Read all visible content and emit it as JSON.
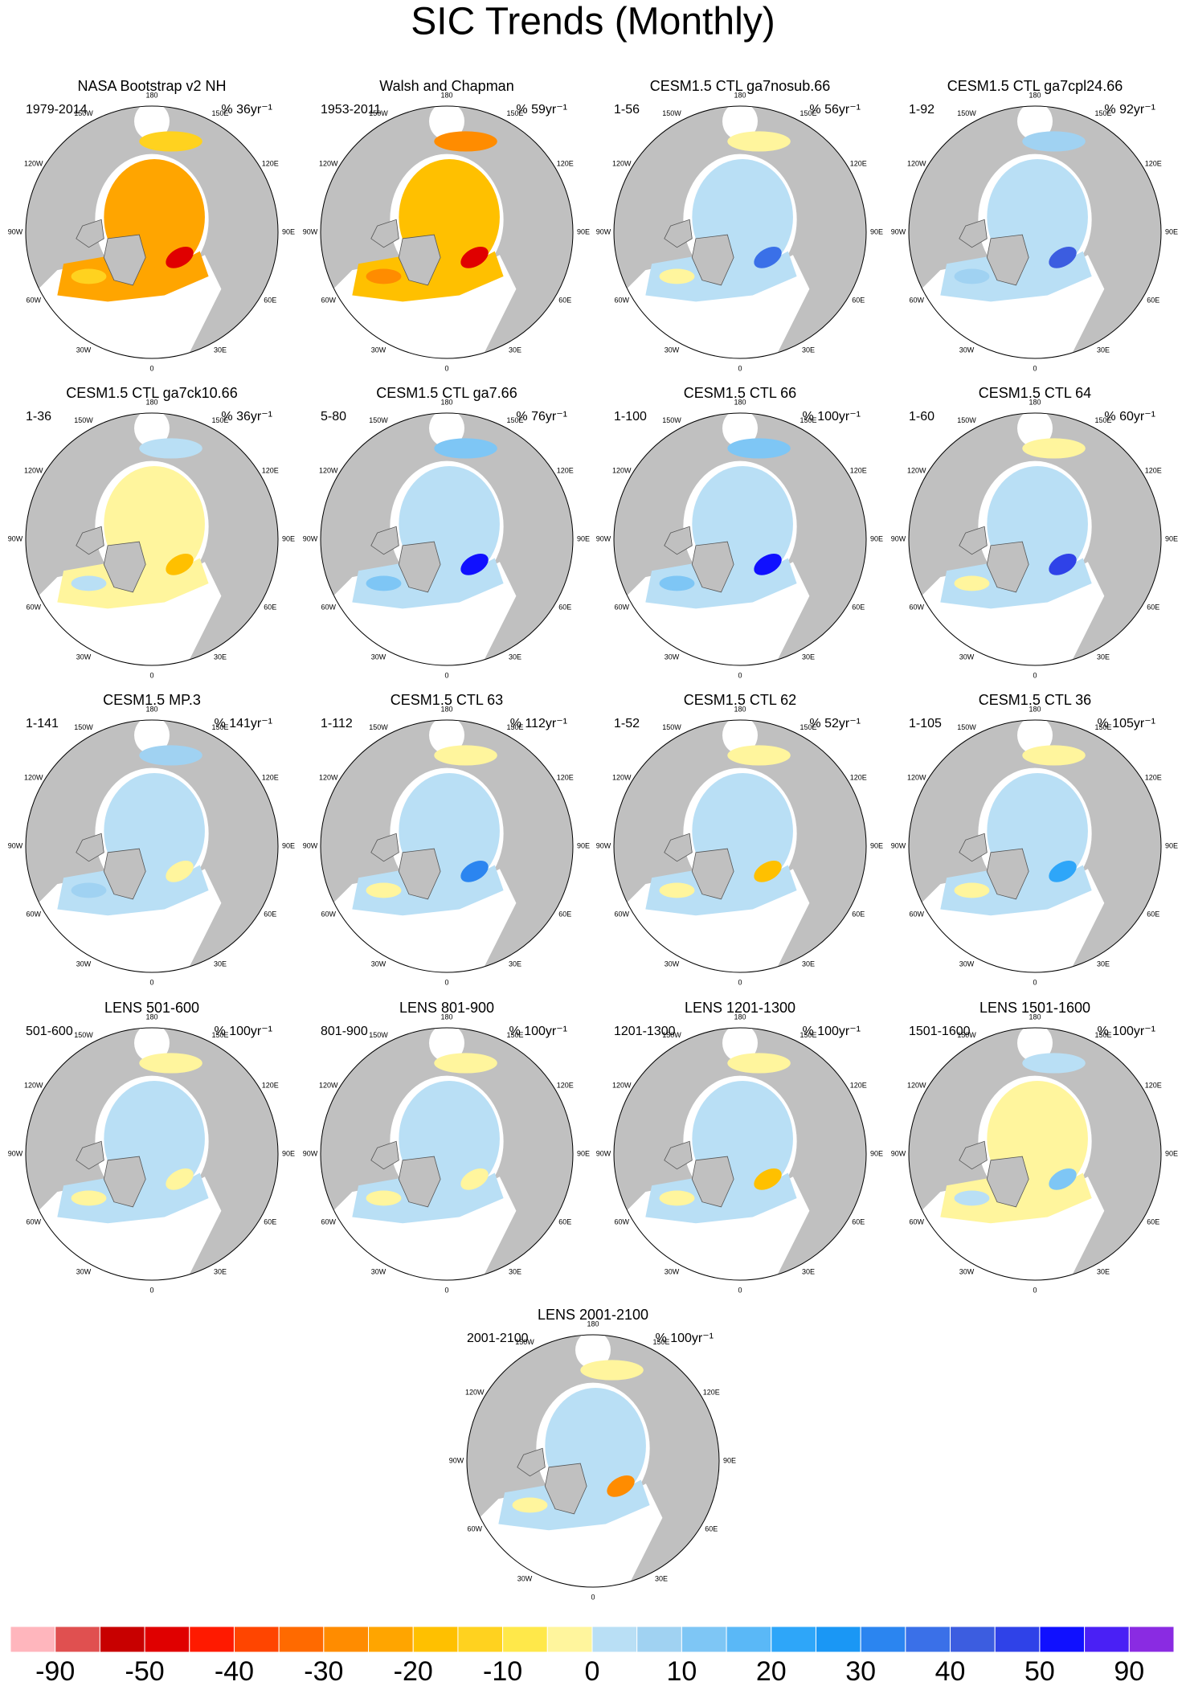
{
  "title": "SIC Trends (Monthly)",
  "longitude_labels": [
    "180",
    "150E",
    "120E",
    "90E",
    "60E",
    "30E",
    "0",
    "30W",
    "60W",
    "90W",
    "120W",
    "150W"
  ],
  "panels": [
    {
      "title": "NASA Bootstrap v2 NH",
      "period": "1979-2014",
      "trend": "% 36yr⁻¹"
    },
    {
      "title": "Walsh and Chapman",
      "period": "1953-2011",
      "trend": "% 59yr⁻¹"
    },
    {
      "title": "CESM1.5 CTL ga7nosub.66",
      "period": "1-56",
      "trend": "% 56yr⁻¹"
    },
    {
      "title": "CESM1.5 CTL ga7cpl24.66",
      "period": "1-92",
      "trend": "% 92yr⁻¹"
    },
    {
      "title": "CESM1.5 CTL ga7ck10.66",
      "period": "1-36",
      "trend": "% 36yr⁻¹"
    },
    {
      "title": "CESM1.5 CTL ga7.66",
      "period": "5-80",
      "trend": "% 76yr⁻¹"
    },
    {
      "title": "CESM1.5 CTL 66",
      "period": "1-100",
      "trend": "% 100yr⁻¹"
    },
    {
      "title": "CESM1.5 CTL 64",
      "period": "1-60",
      "trend": "% 60yr⁻¹"
    },
    {
      "title": "CESM1.5 MP.3",
      "period": "1-141",
      "trend": "% 141yr⁻¹"
    },
    {
      "title": "CESM1.5 CTL 63",
      "period": "1-112",
      "trend": "% 112yr⁻¹"
    },
    {
      "title": "CESM1.5 CTL 62",
      "period": "1-52",
      "trend": "% 52yr⁻¹"
    },
    {
      "title": "CESM1.5 CTL 36",
      "period": "1-105",
      "trend": "% 105yr⁻¹"
    },
    {
      "title": "LENS 501-600",
      "period": "501-600",
      "trend": "% 100yr⁻¹"
    },
    {
      "title": "LENS 801-900",
      "period": "801-900",
      "trend": "% 100yr⁻¹"
    },
    {
      "title": "LENS 1201-1300",
      "period": "1201-1300",
      "trend": "% 100yr⁻¹"
    },
    {
      "title": "LENS 1501-1600",
      "period": "1501-1600",
      "trend": "% 100yr⁻¹"
    },
    {
      "title": "LENS 2001-2100",
      "period": "2001-2100",
      "trend": "% 100yr⁻¹"
    }
  ],
  "colorbar": {
    "colors": [
      "#ffb6bd",
      "#e05050",
      "#c80000",
      "#e00000",
      "#ff1a00",
      "#ff4500",
      "#ff6a00",
      "#ff8c00",
      "#ffa500",
      "#ffc000",
      "#ffd21f",
      "#ffe84a",
      "#fff59d",
      "#b9dff5",
      "#a0d2f2",
      "#7ec6f5",
      "#5ab8f7",
      "#2ea6f9",
      "#1a97f5",
      "#2b85f0",
      "#3a70e8",
      "#3c5de0",
      "#2f42e8",
      "#1010ff",
      "#4a20f5",
      "#8a2be2"
    ],
    "labels": [
      -90,
      -50,
      -40,
      -30,
      -20,
      -10,
      0,
      10,
      20,
      30,
      40,
      50,
      90
    ]
  }
}
